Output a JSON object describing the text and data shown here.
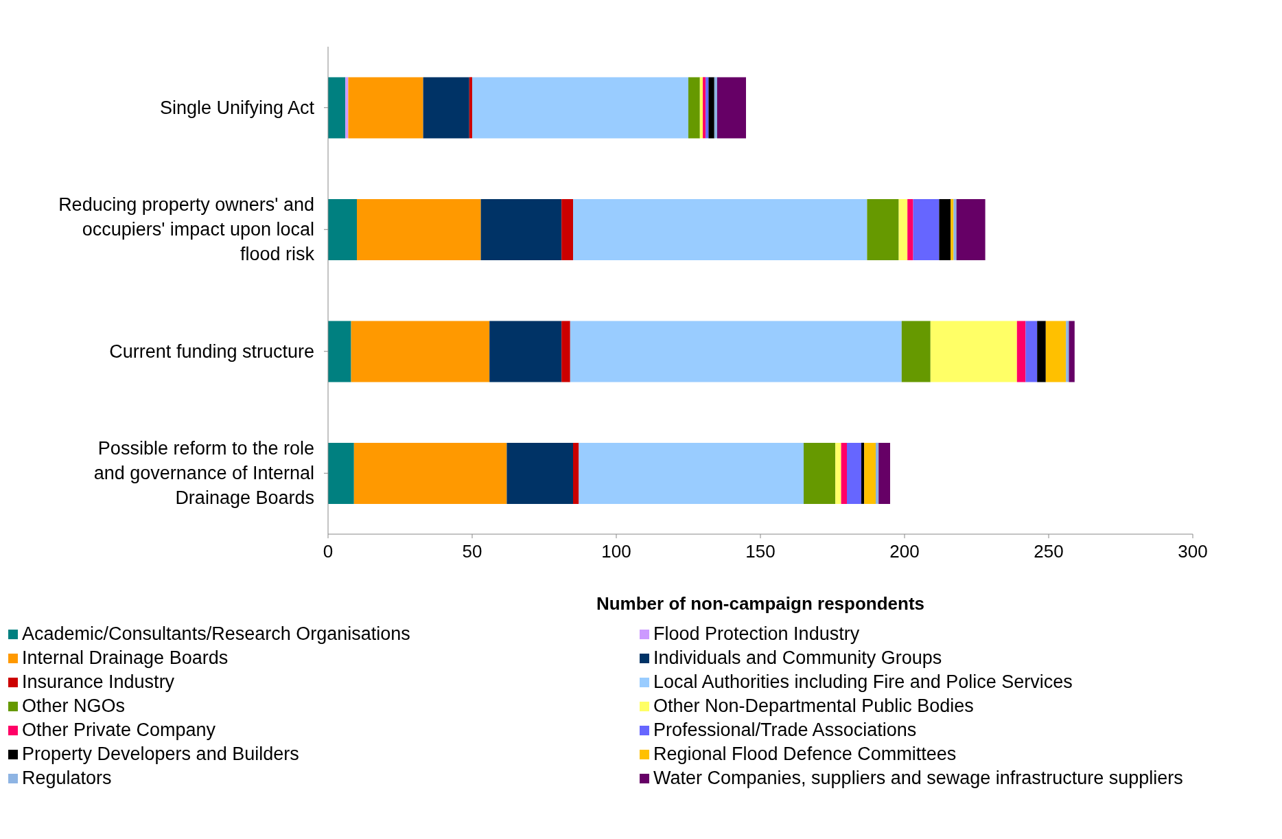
{
  "chart_data": {
    "type": "bar",
    "orientation": "horizontal",
    "stacked": true,
    "xlabel": "Number of non-campaign respondents",
    "categories": [
      "Single Unifying Act",
      "Reducing property owners' and occupiers' impact upon local flood risk",
      "Current funding structure",
      "Possible reform to the role and governance of Internal Drainage Boards"
    ],
    "xlim": [
      0,
      300
    ],
    "xticks": [
      0,
      50,
      100,
      150,
      200,
      250,
      300
    ],
    "grid": false,
    "legend": "bottom",
    "series": [
      {
        "name": "Academic/Consultants/Research Organisations",
        "color": "#008080",
        "values": [
          6,
          10,
          8,
          9
        ]
      },
      {
        "name": "Flood Protection Industry",
        "color": "#cc99ff",
        "values": [
          1,
          0,
          0,
          0
        ]
      },
      {
        "name": "Internal Drainage Boards",
        "color": "#ff9900",
        "values": [
          26,
          43,
          48,
          53
        ]
      },
      {
        "name": "Individuals and Community Groups",
        "color": "#003366",
        "values": [
          16,
          28,
          25,
          23
        ]
      },
      {
        "name": "Insurance Industry",
        "color": "#cc0000",
        "values": [
          1,
          4,
          3,
          2
        ]
      },
      {
        "name": "Local Authorities including Fire and Police Services",
        "color": "#99ccff",
        "values": [
          75,
          102,
          115,
          78
        ]
      },
      {
        "name": "Other NGOs",
        "color": "#669900",
        "values": [
          4,
          11,
          10,
          11
        ]
      },
      {
        "name": "Other Non-Departmental Public Bodies",
        "color": "#ffff66",
        "values": [
          1,
          3,
          30,
          2
        ]
      },
      {
        "name": "Other Private Company",
        "color": "#ff0066",
        "values": [
          1,
          2,
          3,
          2
        ]
      },
      {
        "name": "Professional/Trade Associations",
        "color": "#6666ff",
        "values": [
          1,
          9,
          4,
          5
        ]
      },
      {
        "name": "Property Developers and Builders",
        "color": "#000000",
        "values": [
          2,
          4,
          3,
          1
        ]
      },
      {
        "name": "Regional Flood Defence Committees",
        "color": "#ffc000",
        "values": [
          0,
          1,
          7,
          4
        ]
      },
      {
        "name": "Regulators",
        "color": "#8eb4e3",
        "values": [
          1,
          1,
          1,
          1
        ]
      },
      {
        "name": "Water Companies, suppliers and sewage infrastructure suppliers",
        "color": "#660066",
        "values": [
          10,
          10,
          2,
          4
        ]
      }
    ]
  }
}
